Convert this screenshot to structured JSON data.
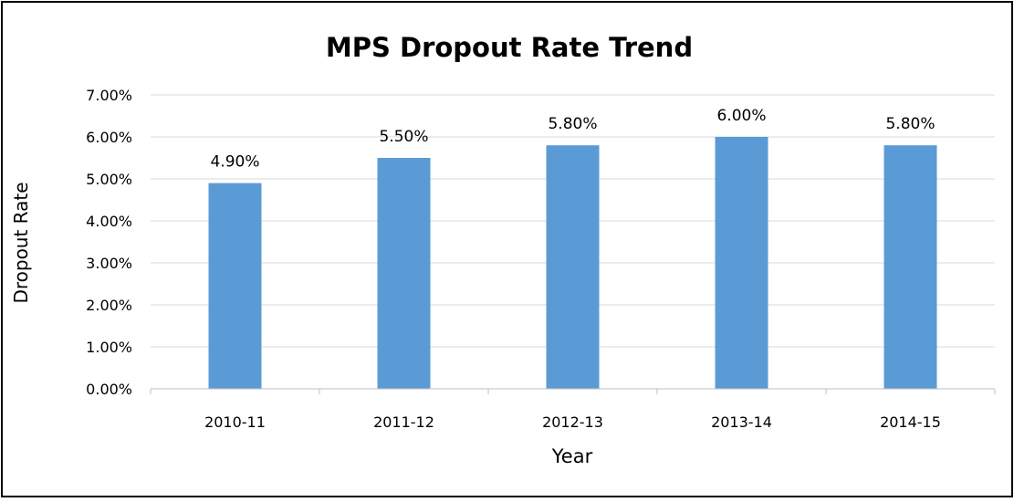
{
  "chart_data": {
    "type": "bar",
    "title": "MPS Dropout Rate Trend",
    "xlabel": "Year",
    "ylabel": "Dropout Rate",
    "categories": [
      "2010-11",
      "2011-12",
      "2012-13",
      "2013-14",
      "2014-15"
    ],
    "values": [
      4.9,
      5.5,
      5.8,
      6.0,
      5.8
    ],
    "value_labels": [
      "4.90%",
      "5.50%",
      "5.80%",
      "6.00%",
      "5.80%"
    ],
    "ylim": [
      0,
      7
    ],
    "yticks": [
      0,
      1,
      2,
      3,
      4,
      5,
      6,
      7
    ],
    "ytick_labels": [
      "0.00%",
      "1.00%",
      "2.00%",
      "3.00%",
      "4.00%",
      "5.00%",
      "6.00%",
      "7.00%"
    ],
    "grid": true,
    "legend": "none",
    "colors": {
      "bar": "#5b9bd5",
      "grid": "#d9d9d9",
      "axis": "#bfbfbf",
      "text": "#000000",
      "border": "#000000"
    }
  }
}
